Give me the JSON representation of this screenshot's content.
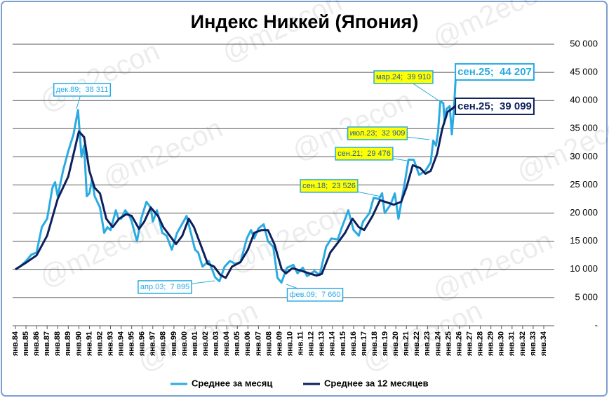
{
  "chart_data": {
    "type": "line",
    "title": "Индекс Никкей (Япония)",
    "watermark": "@m2econ",
    "xlim": [
      1984,
      2034
    ],
    "ylim": [
      0,
      50000
    ],
    "grid": true,
    "legend": "bottom",
    "yticks": [
      {
        "value": 0,
        "label": "-"
      },
      {
        "value": 5000,
        "label": "5 000"
      },
      {
        "value": 10000,
        "label": "10 000"
      },
      {
        "value": 15000,
        "label": "15 000"
      },
      {
        "value": 20000,
        "label": "20 000"
      },
      {
        "value": 25000,
        "label": "25 000"
      },
      {
        "value": 30000,
        "label": "30 000"
      },
      {
        "value": 35000,
        "label": "35 000"
      },
      {
        "value": 40000,
        "label": "40 000"
      },
      {
        "value": 45000,
        "label": "45 000"
      },
      {
        "value": 50000,
        "label": "50 000"
      }
    ],
    "xticks": [
      {
        "value": 1984,
        "label": "янв.84"
      },
      {
        "value": 1985,
        "label": "янв.85"
      },
      {
        "value": 1986,
        "label": "янв.86"
      },
      {
        "value": 1987,
        "label": "янв.87"
      },
      {
        "value": 1988,
        "label": "янв.88"
      },
      {
        "value": 1989,
        "label": "янв.89"
      },
      {
        "value": 1990,
        "label": "янв.90"
      },
      {
        "value": 1991,
        "label": "янв.91"
      },
      {
        "value": 1992,
        "label": "янв.92"
      },
      {
        "value": 1993,
        "label": "янв.93"
      },
      {
        "value": 1994,
        "label": "янв.94"
      },
      {
        "value": 1995,
        "label": "янв.95"
      },
      {
        "value": 1996,
        "label": "янв.96"
      },
      {
        "value": 1997,
        "label": "янв.97"
      },
      {
        "value": 1998,
        "label": "янв.98"
      },
      {
        "value": 1999,
        "label": "янв.99"
      },
      {
        "value": 2000,
        "label": "янв.00"
      },
      {
        "value": 2001,
        "label": "янв.01"
      },
      {
        "value": 2002,
        "label": "янв.02"
      },
      {
        "value": 2003,
        "label": "янв.03"
      },
      {
        "value": 2004,
        "label": "янв.04"
      },
      {
        "value": 2005,
        "label": "янв.05"
      },
      {
        "value": 2006,
        "label": "янв.06"
      },
      {
        "value": 2007,
        "label": "янв.07"
      },
      {
        "value": 2008,
        "label": "янв.08"
      },
      {
        "value": 2009,
        "label": "янв.09"
      },
      {
        "value": 2010,
        "label": "янв.10"
      },
      {
        "value": 2011,
        "label": "янв.11"
      },
      {
        "value": 2012,
        "label": "янв.12"
      },
      {
        "value": 2013,
        "label": "янв.13"
      },
      {
        "value": 2014,
        "label": "янв.14"
      },
      {
        "value": 2015,
        "label": "янв.15"
      },
      {
        "value": 2016,
        "label": "янв.16"
      },
      {
        "value": 2017,
        "label": "янв.17"
      },
      {
        "value": 2018,
        "label": "янв.18"
      },
      {
        "value": 2019,
        "label": "янв.19"
      },
      {
        "value": 2020,
        "label": "янв.20"
      },
      {
        "value": 2021,
        "label": "янв.21"
      },
      {
        "value": 2022,
        "label": "янв.22"
      },
      {
        "value": 2023,
        "label": "янв.23"
      },
      {
        "value": 2024,
        "label": "янв.24"
      },
      {
        "value": 2025,
        "label": "янв.25"
      },
      {
        "value": 2026,
        "label": "янв.26"
      },
      {
        "value": 2027,
        "label": "янв.27"
      },
      {
        "value": 2028,
        "label": "янв.28"
      },
      {
        "value": 2029,
        "label": "янв.29"
      },
      {
        "value": 2030,
        "label": "янв.30"
      },
      {
        "value": 2031,
        "label": "янв.31"
      },
      {
        "value": 2032,
        "label": "янв.32"
      },
      {
        "value": 2033,
        "label": "янв.33"
      },
      {
        "value": 2034,
        "label": "янв.34"
      }
    ],
    "series": [
      {
        "name": "Среднее за месяц",
        "color": "#29abe2",
        "width": 3,
        "x": [
          1984.0,
          1984.5,
          1985.0,
          1985.5,
          1986.0,
          1986.5,
          1987.0,
          1987.5,
          1987.75,
          1988.0,
          1988.5,
          1989.0,
          1989.5,
          1989.92,
          1990.25,
          1990.5,
          1990.75,
          1991.0,
          1991.25,
          1991.5,
          1992.0,
          1992.4,
          1992.7,
          1993.0,
          1993.5,
          1993.75,
          1994.0,
          1994.4,
          1994.8,
          1995.0,
          1995.5,
          1995.9,
          1996.4,
          1996.8,
          1997.0,
          1997.4,
          1997.9,
          1998.3,
          1998.8,
          1999.3,
          1999.9,
          2000.2,
          2000.6,
          2001.0,
          2001.3,
          2001.7,
          2002.3,
          2002.9,
          2003.3,
          2003.8,
          2004.3,
          2004.8,
          2005.3,
          2005.9,
          2006.3,
          2006.6,
          2007.0,
          2007.5,
          2007.9,
          2008.4,
          2008.8,
          2009.17,
          2009.7,
          2010.3,
          2010.7,
          2011.2,
          2011.6,
          2012.3,
          2012.8,
          2013.4,
          2013.9,
          2014.5,
          2014.9,
          2015.5,
          2016.0,
          2016.5,
          2016.9,
          2017.5,
          2017.9,
          2018.4,
          2018.7,
          2018.95,
          2019.5,
          2019.9,
          2020.25,
          2020.9,
          2021.2,
          2021.7,
          2022.2,
          2022.8,
          2023.3,
          2023.54,
          2023.8,
          2024.0,
          2024.21,
          2024.5,
          2024.6,
          2024.8,
          2025.1,
          2025.3,
          2025.5,
          2025.67
        ],
        "values": [
          10000,
          10600,
          11500,
          12600,
          13000,
          17500,
          19000,
          24500,
          25500,
          23000,
          27500,
          31000,
          34000,
          38311,
          30000,
          32000,
          23000,
          23500,
          26000,
          23000,
          21000,
          16500,
          17500,
          17000,
          20500,
          19000,
          19000,
          20500,
          19500,
          18500,
          15000,
          19000,
          22000,
          21000,
          18500,
          20500,
          16500,
          16000,
          13500,
          16500,
          18500,
          19500,
          16500,
          13500,
          13000,
          10500,
          11500,
          8600,
          7895,
          10500,
          11500,
          11000,
          11300,
          15500,
          17000,
          15500,
          17300,
          18000,
          15000,
          14000,
          8500,
          7660,
          10300,
          10800,
          9300,
          10300,
          8800,
          9700,
          9000,
          14000,
          15500,
          15300,
          17500,
          20500,
          17000,
          16000,
          18500,
          20000,
          22700,
          22500,
          23526,
          20000,
          21500,
          23500,
          19000,
          26000,
          29500,
          29476,
          26800,
          27500,
          29000,
          32909,
          32000,
          34500,
          39910,
          39500,
          36500,
          38500,
          39000,
          34000,
          38500,
          44207
        ]
      },
      {
        "name": "Среднее за 12 месяцев",
        "color": "#0d1f5c",
        "width": 3,
        "x": [
          1984.0,
          1985.0,
          1986.0,
          1987.0,
          1988.0,
          1989.0,
          1990.0,
          1990.5,
          1991.0,
          1991.5,
          1992.0,
          1992.6,
          1993.2,
          1993.8,
          1994.5,
          1995.0,
          1995.7,
          1996.2,
          1996.8,
          1997.5,
          1998.0,
          1998.6,
          1999.2,
          1999.8,
          2000.4,
          2000.9,
          2001.6,
          2002.2,
          2002.8,
          2003.4,
          2003.9,
          2004.5,
          2005.3,
          2006.0,
          2006.6,
          2007.3,
          2007.9,
          2008.5,
          2009.2,
          2009.6,
          2010.2,
          2011.0,
          2011.8,
          2012.5,
          2013.0,
          2013.8,
          2014.5,
          2015.2,
          2015.9,
          2016.5,
          2017.0,
          2017.8,
          2018.5,
          2019.0,
          2019.8,
          2020.5,
          2021.0,
          2021.6,
          2022.3,
          2022.8,
          2023.3,
          2023.9,
          2024.4,
          2024.9,
          2025.3,
          2025.67
        ],
        "values": [
          10000,
          11200,
          12500,
          16000,
          22500,
          26500,
          34500,
          33500,
          27500,
          24500,
          23500,
          19000,
          17500,
          19000,
          19800,
          19500,
          17200,
          18500,
          21000,
          19500,
          17500,
          16000,
          14500,
          16000,
          19000,
          17500,
          14000,
          11000,
          10500,
          9000,
          8500,
          10500,
          11300,
          13500,
          16500,
          17000,
          17000,
          14500,
          10000,
          9300,
          10200,
          9800,
          9300,
          8900,
          9200,
          13000,
          14700,
          16500,
          19000,
          17500,
          17000,
          19500,
          22300,
          22000,
          21500,
          22000,
          24500,
          28500,
          28000,
          27000,
          27500,
          30500,
          35000,
          38000,
          38500,
          39099
        ]
      }
    ],
    "annotations": [
      "дек.89;  38 311",
      "апр.03;  7 895",
      "фев.09;  7 660",
      "сен.18;  23 526",
      "сен.21;  29 476",
      "июл.23;  32 909",
      "мар.24;  39 910",
      "сен.25;  44 207",
      "сен.25;  39 099"
    ]
  }
}
